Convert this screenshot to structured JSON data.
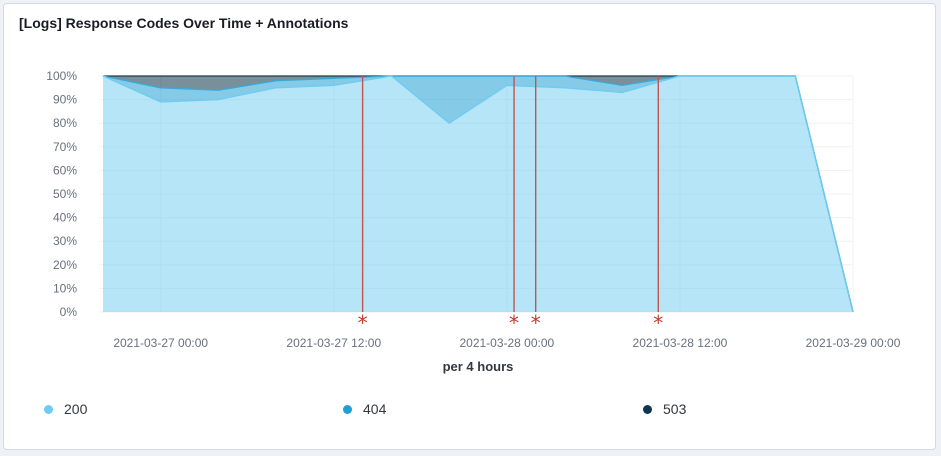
{
  "panel": {
    "title": "[Logs] Response Codes Over Time + Annotations"
  },
  "chart_data": {
    "type": "area",
    "stacked": true,
    "percentage": true,
    "title": "[Logs] Response Codes Over Time + Annotations",
    "xlabel": "per 4 hours",
    "ylabel": "",
    "ylim": [
      0,
      100
    ],
    "y_ticks": [
      "0%",
      "10%",
      "20%",
      "30%",
      "40%",
      "50%",
      "60%",
      "70%",
      "80%",
      "90%",
      "100%"
    ],
    "y_tick_values": [
      0,
      10,
      20,
      30,
      40,
      50,
      60,
      70,
      80,
      90,
      100
    ],
    "x_tick_labels": [
      "2021-03-27 00:00",
      "2021-03-27 12:00",
      "2021-03-28 00:00",
      "2021-03-28 12:00",
      "2021-03-29 00:00"
    ],
    "x_tick_hours": [
      0,
      12,
      24,
      36,
      48
    ],
    "xlim_hours": [
      -4,
      48
    ],
    "grid": true,
    "legend_position": "bottom",
    "x_hours": [
      -4,
      0,
      4,
      8,
      12,
      16,
      20,
      24,
      28,
      32,
      36,
      40,
      44,
      48
    ],
    "series": [
      {
        "name": "200",
        "color": "#6dccf1",
        "values": [
          100,
          89,
          90,
          95,
          96,
          100,
          80,
          96,
          95,
          93,
          100,
          100,
          100,
          0
        ]
      },
      {
        "name": "404",
        "color": "#3aa9d9",
        "values": [
          0,
          6,
          4,
          3,
          3,
          0,
          20,
          4,
          5,
          3,
          0,
          0,
          0,
          0
        ]
      },
      {
        "name": "503",
        "color": "#274b5c",
        "values": [
          0,
          5,
          6,
          2,
          1,
          0,
          0,
          0,
          0,
          4,
          0,
          0,
          0,
          0
        ]
      }
    ],
    "annotations": [
      {
        "x_hours": 14,
        "marker": "*"
      },
      {
        "x_hours": 24.5,
        "marker": "*"
      },
      {
        "x_hours": 26,
        "marker": "*"
      },
      {
        "x_hours": 34.5,
        "marker": "*"
      }
    ]
  }
}
